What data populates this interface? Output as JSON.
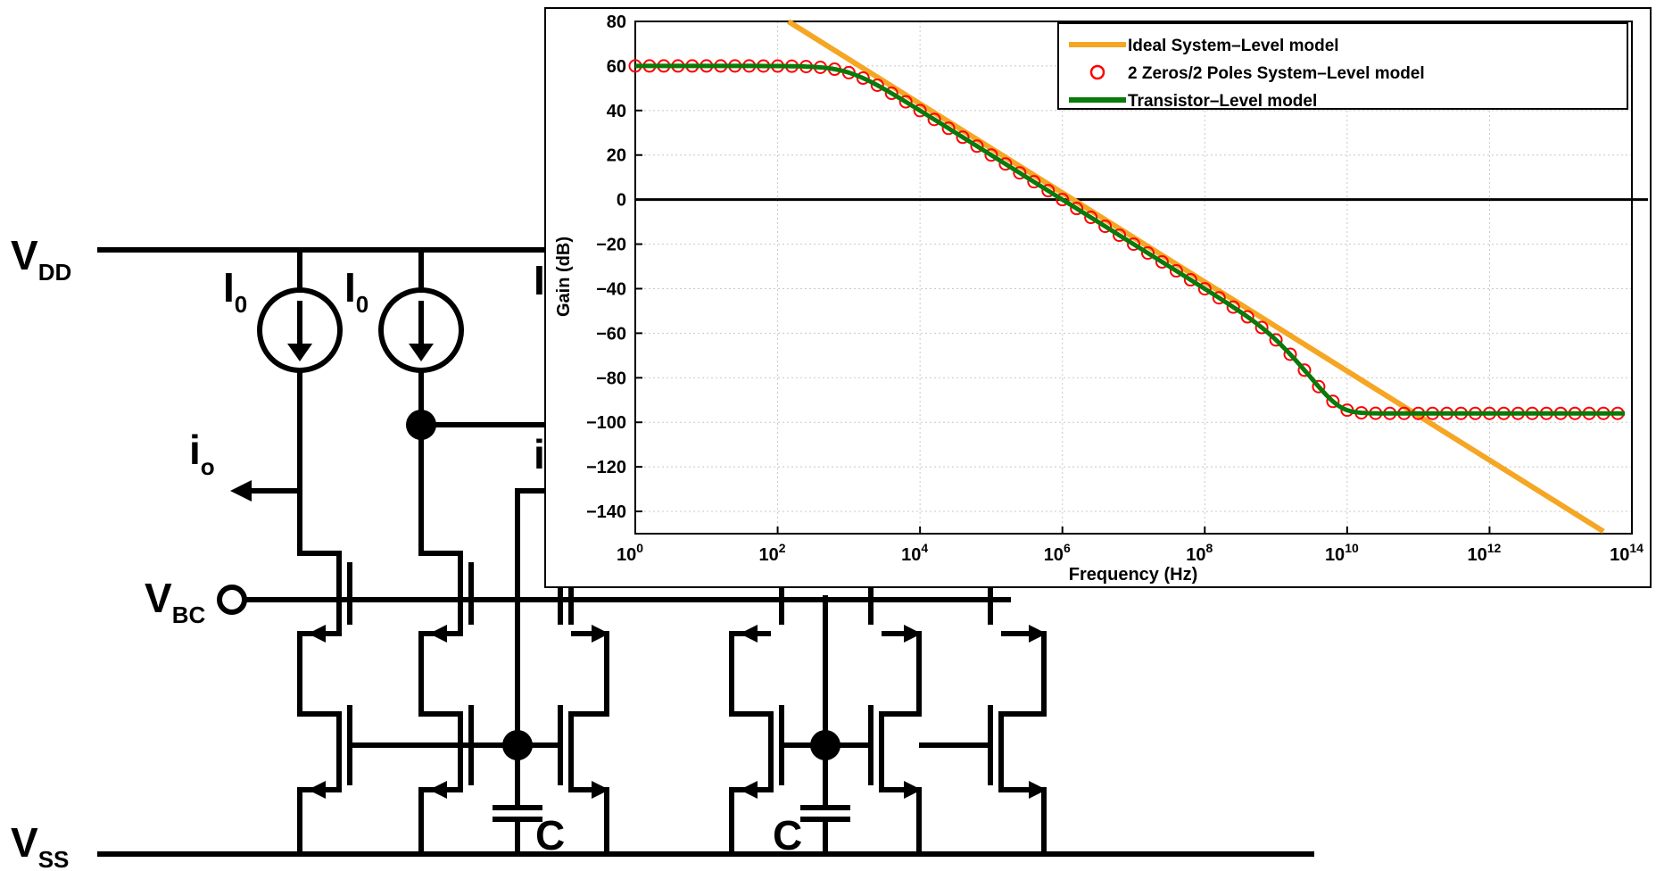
{
  "circuit": {
    "vdd_main": "V",
    "vdd_sub": "DD",
    "vss_main": "V",
    "vss_sub": "SS",
    "vbc_main": "V",
    "vbc_sub": "BC",
    "current_source_1_main": "I",
    "current_source_1_sub": "0",
    "current_source_2_main": "I",
    "current_source_2_sub": "0",
    "current_source_3_main": "I",
    "output_current_main": "i",
    "output_current_sub": "o",
    "input_current_main": "i",
    "capacitor_1": "C",
    "capacitor_2": "C"
  },
  "chart_data": {
    "type": "line",
    "xlabel": "Frequency (Hz)",
    "ylabel": "Gain (dB)",
    "x_scale": "log",
    "xlim": [
      1,
      100000000000000
    ],
    "ylim": [
      -150,
      80
    ],
    "grid": true,
    "legend_position": "top-right",
    "x_tick_base": "10",
    "x_tick_exponents": [
      "0",
      "2",
      "4",
      "6",
      "8",
      "10",
      "12",
      "14"
    ],
    "y_ticks": [
      "80",
      "60",
      "40",
      "20",
      "0",
      "−20",
      "−40",
      "−60",
      "−80",
      "−100",
      "−120",
      "−140"
    ],
    "reference_line_y": 0,
    "series": [
      {
        "name": "Ideal System–Level model",
        "color": "#f5a623",
        "style": "line",
        "x_log10": [
          2.15,
          13.6
        ],
        "y": [
          80,
          -149
        ]
      },
      {
        "name": "2 Zeros/2 Poles System–Level model",
        "color": "#ff0000",
        "style": "circle-markers",
        "dc_gain_db": 60,
        "pole1_hz": 1000,
        "pole2_hz": 1000000000,
        "zero1_hz": 1000000000,
        "zero2_hz": 1000000000,
        "hf_gain_db": -96
      },
      {
        "name": "Transistor–Level model",
        "color": "#0a7a0a",
        "style": "line",
        "dc_gain_db": 60,
        "pole1_hz": 1000,
        "pole2_hz": 1000000000,
        "hf_gain_db": -96
      }
    ]
  }
}
